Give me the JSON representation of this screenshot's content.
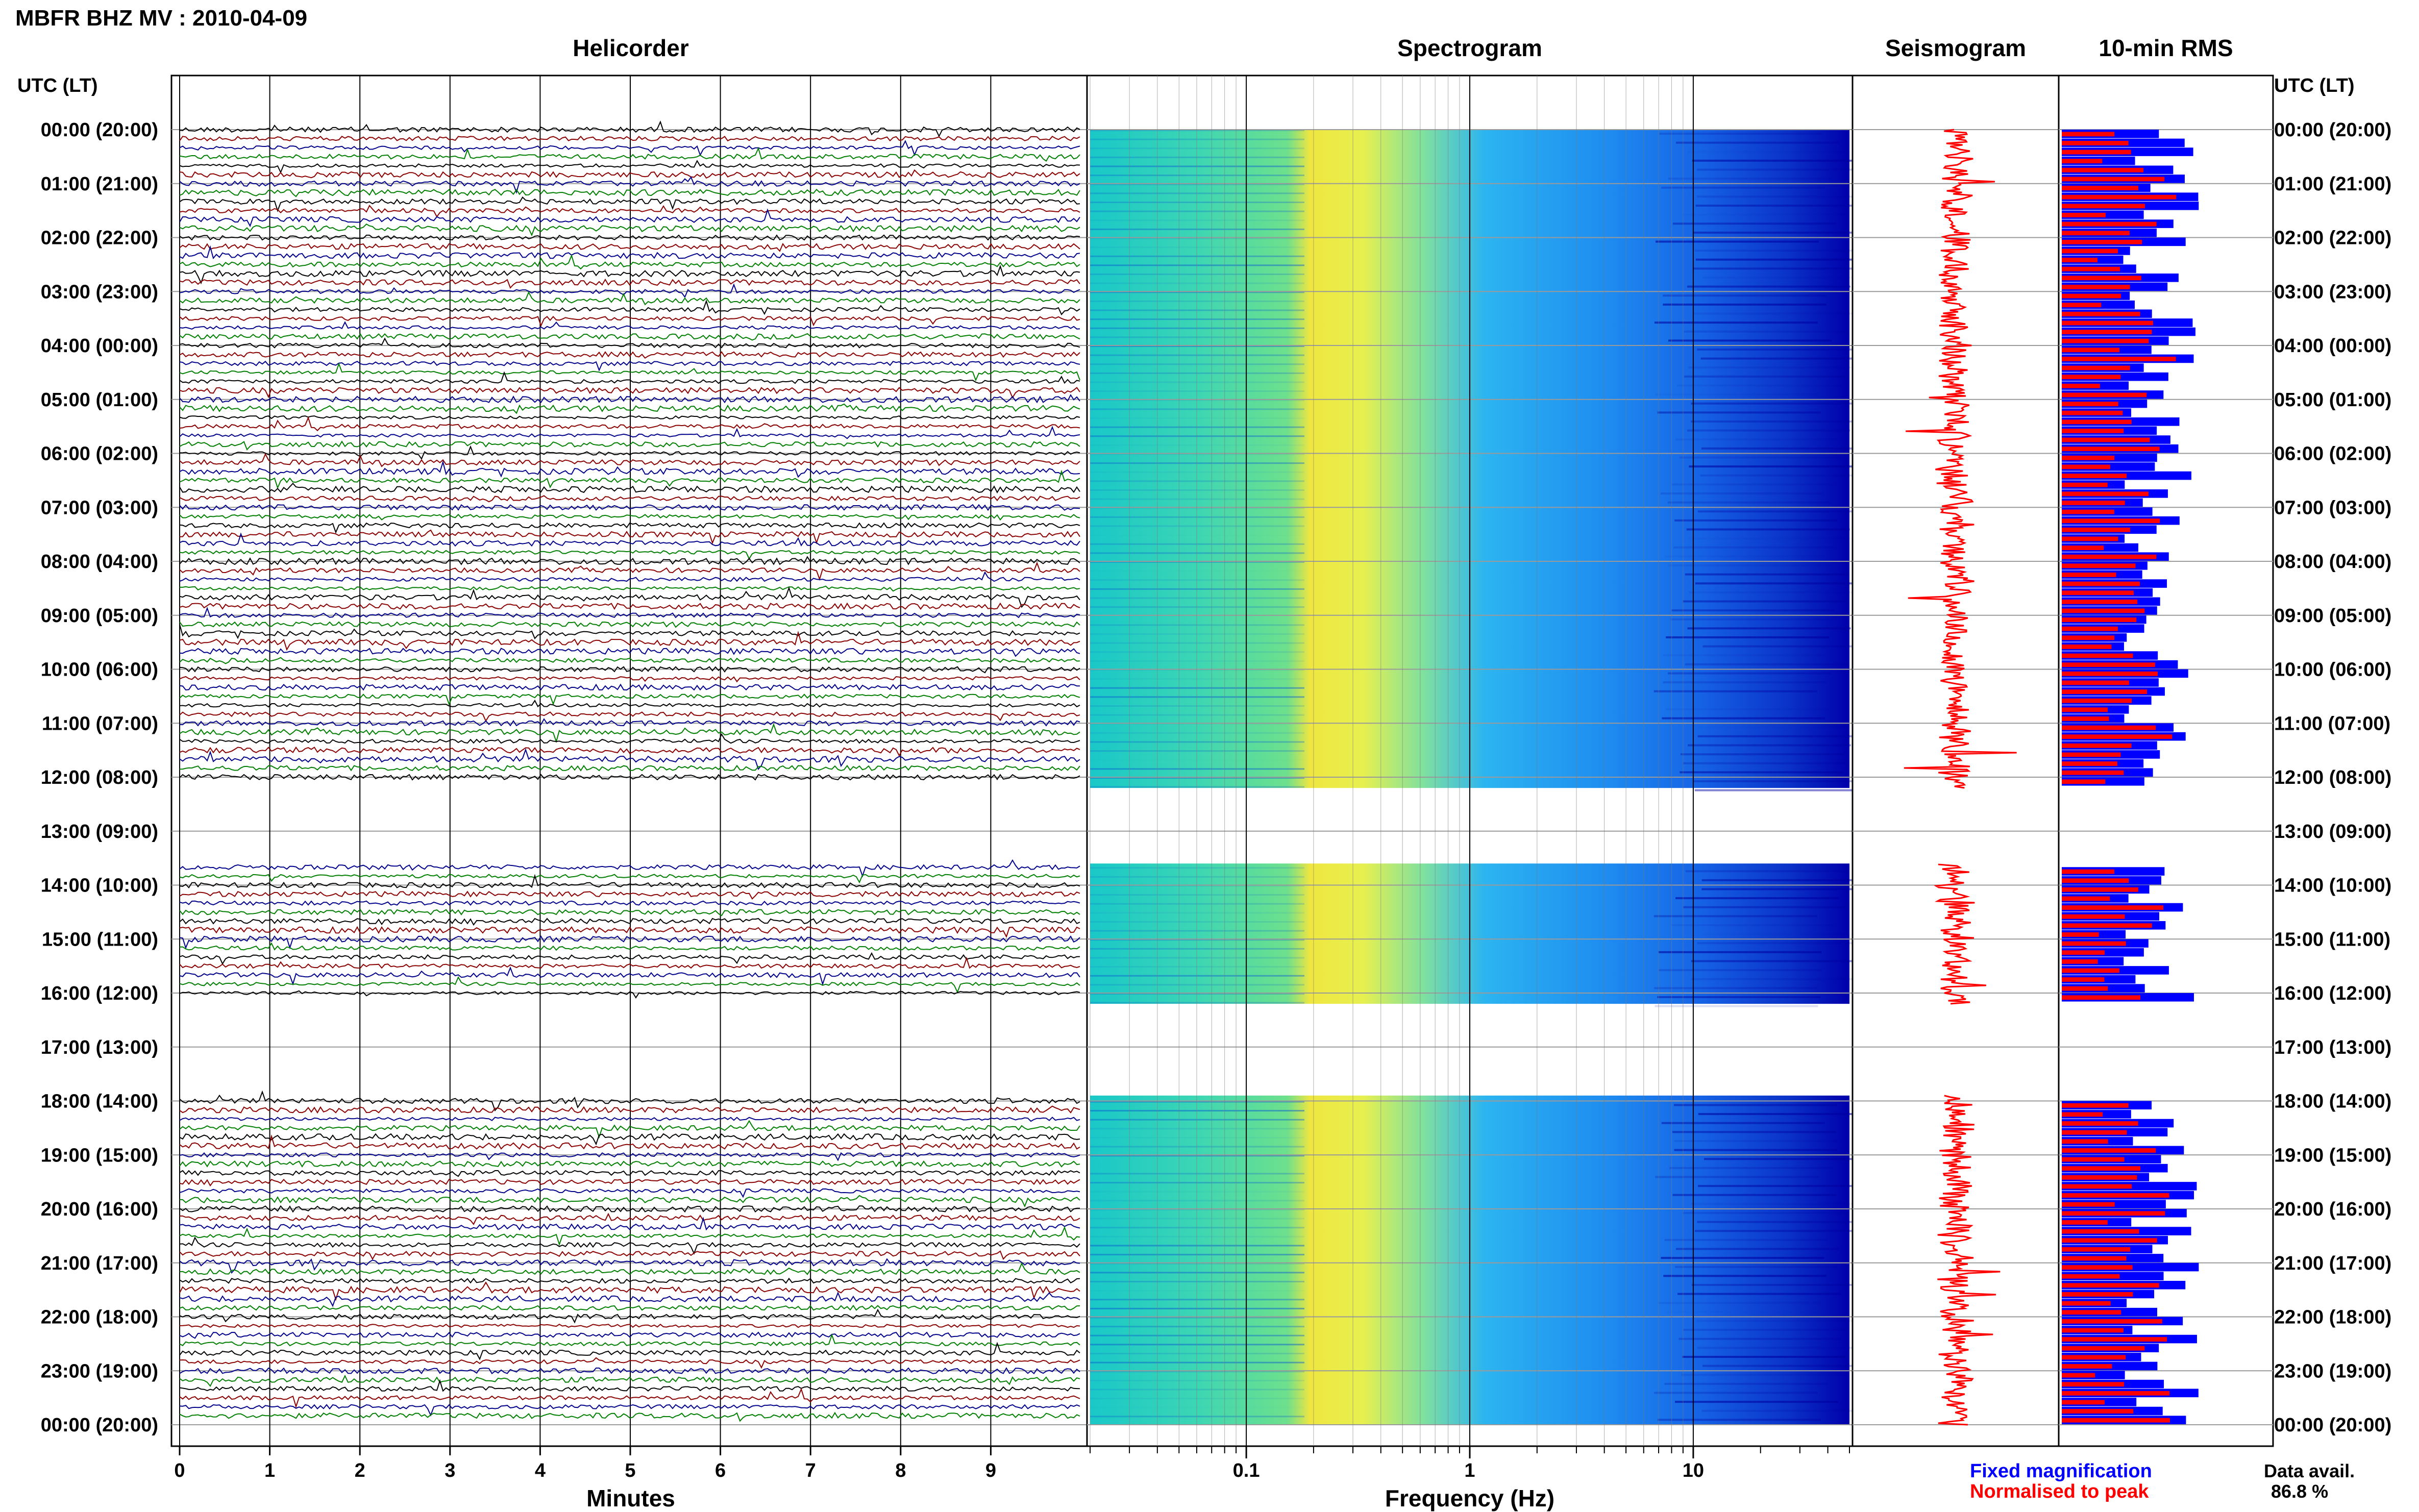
{
  "header": {
    "station_title": "MBFR BHZ MV : 2010-04-09",
    "utc_label_left": "UTC (LT)",
    "utc_label_right": "UTC (LT)"
  },
  "panels": {
    "helicorder": {
      "title": "Helicorder",
      "xlabel": "Minutes"
    },
    "spectrogram": {
      "title": "Spectrogram",
      "xlabel": "Frequency (Hz)"
    },
    "seismogram": {
      "title": "Seismogram"
    },
    "rms": {
      "title": "10-min RMS"
    }
  },
  "legend": {
    "fixed": "Fixed magnification",
    "normalised": "Normalised to peak",
    "data_avail_label": "Data avail.",
    "data_avail_value": "86.8 %"
  },
  "colors": {
    "fixed_magnification": "#0000ff",
    "normalised": "#ff0000",
    "trace_cycle": [
      "#000000",
      "#8b0000",
      "#00008b",
      "#007f00"
    ]
  },
  "chart_data": [
    {
      "type": "line",
      "title": "Helicorder",
      "xlabel": "Minutes",
      "x_ticks": [
        "0",
        "1",
        "2",
        "3",
        "4",
        "5",
        "6",
        "7",
        "8",
        "9"
      ],
      "xlim": [
        0,
        10
      ],
      "rows_per_hour": 6,
      "hours": 24,
      "y_tick_labels": [
        "00:00 (20:00)",
        "01:00 (21:00)",
        "02:00 (22:00)",
        "03:00 (23:00)",
        "04:00 (00:00)",
        "05:00 (01:00)",
        "06:00 (02:00)",
        "07:00 (03:00)",
        "08:00 (04:00)",
        "09:00 (05:00)",
        "10:00 (06:00)",
        "11:00 (07:00)",
        "12:00 (08:00)",
        "13:00 (09:00)",
        "14:00 (10:00)",
        "15:00 (11:00)",
        "16:00 (12:00)",
        "17:00 (13:00)",
        "18:00 (14:00)",
        "19:00 (15:00)",
        "20:00 (16:00)",
        "21:00 (17:00)",
        "22:00 (18:00)",
        "23:00 (19:00)",
        "00:00 (20:00)"
      ],
      "data_gaps_hours": [
        [
          12.2,
          13.6
        ],
        [
          16.2,
          17.9
        ]
      ]
    },
    {
      "type": "heatmap",
      "title": "Spectrogram",
      "xlabel": "Frequency (Hz)",
      "x_scale": "log",
      "xlim": [
        0.02,
        50
      ],
      "x_ticks": [
        0.1,
        1,
        10
      ],
      "x_tick_labels": [
        "0.1",
        "1",
        "10"
      ],
      "peak_energy_hz": [
        0.2,
        0.5
      ]
    },
    {
      "type": "line",
      "title": "Seismogram",
      "series": [
        {
          "name": "Normalised to peak"
        }
      ]
    },
    {
      "type": "bar",
      "title": "10-min RMS",
      "orientation": "horizontal",
      "series": [
        {
          "name": "Fixed magnification",
          "color": "#0000ff"
        },
        {
          "name": "Normalised to peak",
          "color": "#ff0000"
        }
      ]
    }
  ]
}
